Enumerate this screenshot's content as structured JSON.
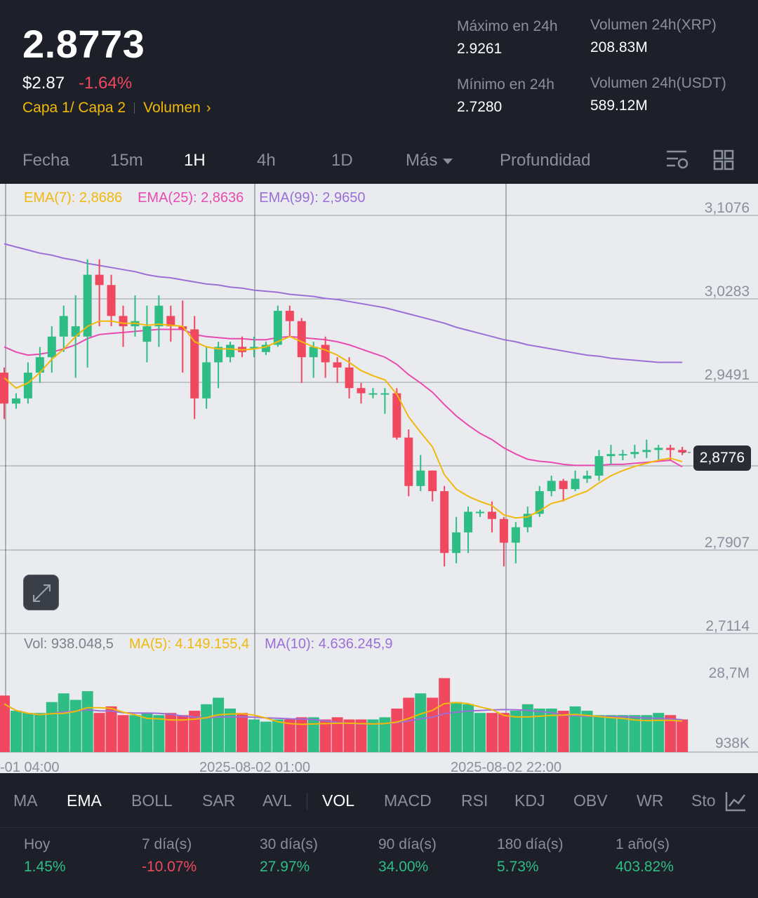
{
  "header": {
    "price": "2.8773",
    "price_usd": "$2.87",
    "change": "-1.64%",
    "tag1": "Capa 1/ Capa 2",
    "tag2": "Volumen",
    "high_label": "Máximo en 24h",
    "high_value": "2.9261",
    "low_label": "Mínimo en 24h",
    "low_value": "2.7280",
    "vol_xrp_label": "Volumen 24h(XRP)",
    "vol_xrp_value": "208.83M",
    "vol_usdt_label": "Volumen 24h(USDT)",
    "vol_usdt_value": "589.12M"
  },
  "tabs": [
    "Fecha",
    "15m",
    "1H",
    "4h",
    "1D",
    "Más",
    "Profundidad"
  ],
  "active_tab": "1H",
  "legend": {
    "ema7": "EMA(7): 2,8686",
    "ema25": "EMA(25): 2,8636",
    "ema99": "EMA(99): 2,9650",
    "vol": "Vol: 938.048,5",
    "ma5": "MA(5): 4.149.155,4",
    "ma10": "MA(10): 4.636.245,9",
    "last_price_tag": "2,8776"
  },
  "colors": {
    "up": "#2ebd85",
    "down": "#f0485f",
    "ema7": "#f0b90b",
    "ema25": "#e84bb0",
    "ema99": "#9b6fd6",
    "accent": "#f0b90b"
  },
  "chart_data": {
    "type": "candlestick",
    "price_axis_ticks": [
      "3,1076",
      "3,0283",
      "2,9491",
      "2,8776",
      "2,7907",
      "2,7114"
    ],
    "price_axis_values": [
      3.1076,
      3.0283,
      2.9491,
      2.8776,
      2.7907,
      2.7114
    ],
    "volume_axis_ticks": [
      "28,7M",
      "938K"
    ],
    "time_ticks": [
      "-01 04:00",
      "2025-08-02 01:00",
      "2025-08-02 22:00"
    ],
    "candles": [
      [
        2.955,
        2.925,
        2.96,
        2.91
      ],
      [
        2.925,
        2.93,
        2.935,
        2.92
      ],
      [
        2.93,
        2.955,
        2.965,
        2.925
      ],
      [
        2.955,
        2.97,
        2.98,
        2.945
      ],
      [
        2.97,
        2.99,
        3.0,
        2.955
      ],
      [
        2.99,
        3.01,
        3.02,
        2.975
      ],
      [
        2.99,
        3.0,
        3.03,
        2.95
      ],
      [
        2.99,
        3.05,
        3.065,
        2.96
      ],
      [
        3.05,
        3.04,
        3.065,
        3.0
      ],
      [
        3.04,
        3.01,
        3.05,
        3.0
      ],
      [
        3.01,
        3.0,
        3.02,
        2.98
      ],
      [
        3.0,
        3.005,
        3.03,
        2.99
      ],
      [
        2.985,
        3.0,
        3.02,
        2.965
      ],
      [
        3.0,
        3.02,
        3.03,
        2.98
      ],
      [
        3.01,
        3.0,
        3.02,
        2.985
      ],
      [
        3.0,
        2.997,
        3.025,
        2.955
      ],
      [
        2.997,
        2.93,
        3.01,
        2.91
      ],
      [
        2.93,
        2.965,
        2.98,
        2.92
      ],
      [
        2.965,
        2.98,
        2.985,
        2.94
      ],
      [
        2.97,
        2.982,
        2.985,
        2.965
      ],
      [
        2.98,
        2.975,
        2.99,
        2.97
      ],
      [
        2.98,
        2.98,
        2.99,
        2.97
      ],
      [
        2.975,
        2.982,
        2.985,
        2.972
      ],
      [
        2.982,
        3.015,
        3.02,
        2.98
      ],
      [
        3.015,
        3.005,
        3.02,
        2.99
      ],
      [
        3.005,
        2.97,
        3.008,
        2.945
      ],
      [
        2.97,
        2.98,
        2.985,
        2.95
      ],
      [
        2.982,
        2.965,
        2.99,
        2.95
      ],
      [
        2.965,
        2.96,
        2.97,
        2.945
      ],
      [
        2.96,
        2.94,
        2.97,
        2.93
      ],
      [
        2.94,
        2.935,
        2.945,
        2.925
      ],
      [
        2.935,
        2.935,
        2.94,
        2.93
      ],
      [
        2.935,
        2.935,
        2.94,
        2.915
      ],
      [
        2.935,
        2.892,
        2.94,
        2.89
      ],
      [
        2.892,
        2.845,
        2.9,
        2.835
      ],
      [
        2.845,
        2.86,
        2.875,
        2.84
      ],
      [
        2.86,
        2.84,
        2.86,
        2.83
      ],
      [
        2.84,
        2.78,
        2.845,
        2.767
      ],
      [
        2.78,
        2.8,
        2.815,
        2.77
      ],
      [
        2.8,
        2.82,
        2.825,
        2.78
      ],
      [
        2.82,
        2.82,
        2.822,
        2.815
      ],
      [
        2.82,
        2.813,
        2.83,
        2.8
      ],
      [
        2.813,
        2.79,
        2.815,
        2.767
      ],
      [
        2.79,
        2.805,
        2.81,
        2.77
      ],
      [
        2.805,
        2.818,
        2.825,
        2.8
      ],
      [
        2.818,
        2.84,
        2.845,
        2.815
      ],
      [
        2.84,
        2.85,
        2.855,
        2.835
      ],
      [
        2.85,
        2.842,
        2.852,
        2.83
      ],
      [
        2.842,
        2.852,
        2.86,
        2.84
      ],
      [
        2.852,
        2.855,
        2.86,
        2.848
      ],
      [
        2.855,
        2.874,
        2.88,
        2.85
      ],
      [
        2.874,
        2.876,
        2.885,
        2.866
      ],
      [
        2.876,
        2.876,
        2.88,
        2.87
      ],
      [
        2.876,
        2.878,
        2.885,
        2.872
      ],
      [
        2.878,
        2.88,
        2.89,
        2.872
      ],
      [
        2.88,
        2.882,
        2.885,
        2.87
      ],
      [
        2.882,
        2.88,
        2.885,
        2.87
      ],
      [
        2.88,
        2.8776,
        2.883,
        2.875
      ]
    ],
    "volumes": [
      26,
      19,
      18,
      18,
      23,
      27,
      24,
      28,
      18,
      21,
      17,
      17,
      18,
      17,
      18,
      17,
      19,
      22,
      25,
      20,
      18,
      15,
      14,
      15,
      15,
      16,
      16,
      15,
      16,
      15,
      15,
      15,
      16,
      20,
      25,
      27,
      25,
      34,
      23,
      22,
      18,
      18,
      18,
      19,
      22,
      20,
      20,
      19,
      21,
      19,
      17,
      17,
      17,
      17,
      17,
      18,
      17,
      15
    ],
    "ema7": [
      2.95,
      2.94,
      2.945,
      2.955,
      2.968,
      2.978,
      2.99,
      3.0,
      3.005,
      3.005,
      3.003,
      3.003,
      3.001,
      3.002,
      3.001,
      3.0,
      2.985,
      2.98,
      2.978,
      2.978,
      2.977,
      2.978,
      2.98,
      2.985,
      2.99,
      2.985,
      2.98,
      2.977,
      2.972,
      2.965,
      2.957,
      2.952,
      2.948,
      2.934,
      2.912,
      2.897,
      2.883,
      2.856,
      2.842,
      2.835,
      2.83,
      2.826,
      2.817,
      2.814,
      2.815,
      2.821,
      2.828,
      2.831,
      2.836,
      2.84,
      2.848,
      2.855,
      2.86,
      2.864,
      2.867,
      2.87,
      2.872,
      2.8686
    ],
    "ema25": [
      2.98,
      2.975,
      2.972,
      2.973,
      2.975,
      2.978,
      2.982,
      2.988,
      2.992,
      2.993,
      2.994,
      2.995,
      2.996,
      2.997,
      2.997,
      2.997,
      2.992,
      2.99,
      2.989,
      2.988,
      2.988,
      2.987,
      2.987,
      2.989,
      2.99,
      2.989,
      2.988,
      2.987,
      2.985,
      2.982,
      2.978,
      2.974,
      2.97,
      2.963,
      2.953,
      2.945,
      2.936,
      2.924,
      2.913,
      2.904,
      2.896,
      2.89,
      2.882,
      2.876,
      2.871,
      2.869,
      2.868,
      2.866,
      2.865,
      2.865,
      2.865,
      2.866,
      2.866,
      2.867,
      2.868,
      2.869,
      2.87,
      2.8636
    ],
    "ema99": [
      3.08,
      3.077,
      3.074,
      3.071,
      3.069,
      3.066,
      3.064,
      3.061,
      3.059,
      3.057,
      3.055,
      3.053,
      3.05,
      3.048,
      3.047,
      3.045,
      3.043,
      3.041,
      3.04,
      3.038,
      3.037,
      3.035,
      3.034,
      3.033,
      3.031,
      3.03,
      3.029,
      3.027,
      3.026,
      3.024,
      3.022,
      3.02,
      3.018,
      3.015,
      3.012,
      3.009,
      3.006,
      3.003,
      2.999,
      2.996,
      2.993,
      2.99,
      2.987,
      2.985,
      2.982,
      2.98,
      2.978,
      2.976,
      2.974,
      2.972,
      2.971,
      2.969,
      2.968,
      2.967,
      2.966,
      2.965,
      2.965,
      2.965
    ]
  },
  "indicators": [
    "MA",
    "EMA",
    "BOLL",
    "SAR",
    "AVL",
    "VOL",
    "MACD",
    "RSI",
    "KDJ",
    "OBV",
    "WR",
    "Sto"
  ],
  "performance": [
    {
      "label": "Hoy",
      "value": "1.45%",
      "dir": "up"
    },
    {
      "label": "7 día(s)",
      "value": "-10.07%",
      "dir": "down"
    },
    {
      "label": "30 día(s)",
      "value": "27.97%",
      "dir": "up"
    },
    {
      "label": "90 día(s)",
      "value": "34.00%",
      "dir": "up"
    },
    {
      "label": "180 día(s)",
      "value": "5.73%",
      "dir": "up"
    },
    {
      "label": "1 año(s)",
      "value": "403.82%",
      "dir": "up"
    }
  ]
}
